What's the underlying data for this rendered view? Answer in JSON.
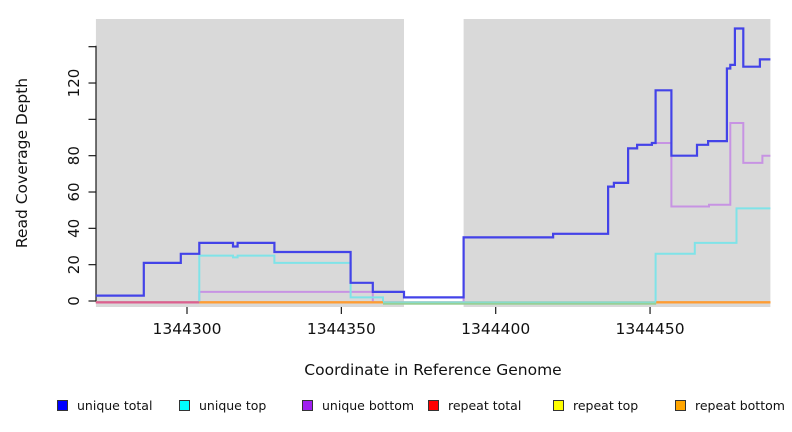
{
  "axes": {
    "xlabel": "Coordinate in Reference Genome",
    "ylabel": "Read Coverage Depth",
    "xticks": [
      {
        "value": 1344300,
        "label": "1344300"
      },
      {
        "value": 1344350,
        "label": "1344350"
      },
      {
        "value": 1344400,
        "label": "1344400"
      },
      {
        "value": 1344450,
        "label": "1344450"
      }
    ],
    "yticks": [
      {
        "value": 0,
        "label": "0"
      },
      {
        "value": 20,
        "label": "20"
      },
      {
        "value": 40,
        "label": "40"
      },
      {
        "value": 60,
        "label": "60"
      },
      {
        "value": 80,
        "label": "80"
      },
      {
        "value": 100,
        "label": ""
      },
      {
        "value": 120,
        "label": "120"
      },
      {
        "value": 140,
        "label": ""
      }
    ]
  },
  "chart_data": {
    "type": "line",
    "subtype": "step",
    "title": "",
    "xlabel": "Coordinate in Reference Genome",
    "ylabel": "Read Coverage Depth",
    "xlim": [
      1344270.5,
      1344489
    ],
    "ylim": [
      0,
      155
    ],
    "grid": false,
    "legend_position": "bottom",
    "panel_color": "#d9d9d9",
    "gap_region": {
      "x0": 1344370.3,
      "x1": 1344389.6,
      "color": "#ffffff"
    },
    "background_regions": [
      {
        "x0": 1344270.5,
        "x1": 1344370.3
      },
      {
        "x0": 1344389.6,
        "x1": 1344489
      }
    ],
    "series": [
      {
        "name": "unique total",
        "color": "#0000ff",
        "line_color": "#4343e8",
        "steps": [
          [
            1344270.5,
            3
          ],
          [
            1344286,
            21
          ],
          [
            1344298,
            26
          ],
          [
            1344304,
            32
          ],
          [
            1344314.9,
            30
          ],
          [
            1344316.4,
            32
          ],
          [
            1344328.3,
            27
          ],
          [
            1344353,
            10
          ],
          [
            1344360.2,
            5
          ],
          [
            1344370.3,
            2
          ],
          [
            1344389.6,
            35
          ],
          [
            1344418.6,
            37
          ],
          [
            1344436.4,
            63
          ],
          [
            1344438.3,
            65
          ],
          [
            1344442.9,
            84
          ],
          [
            1344445.8,
            86
          ],
          [
            1344450.6,
            87
          ],
          [
            1344451.8,
            116
          ],
          [
            1344456.9,
            80
          ],
          [
            1344465.2,
            86
          ],
          [
            1344468.8,
            88
          ],
          [
            1344474.9,
            128
          ],
          [
            1344476,
            130
          ],
          [
            1344477.5,
            150
          ],
          [
            1344480.2,
            129
          ],
          [
            1344485.6,
            133
          ]
        ]
      },
      {
        "name": "unique top",
        "color": "#00ffff",
        "line_color": "#7fe3e8",
        "steps": [
          [
            1344270.5,
            0
          ],
          [
            1344304,
            25
          ],
          [
            1344314.9,
            24
          ],
          [
            1344316.4,
            25
          ],
          [
            1344328.3,
            21
          ],
          [
            1344353,
            2
          ],
          [
            1344363.5,
            0
          ],
          [
            1344451.8,
            26
          ],
          [
            1344464.5,
            32
          ],
          [
            1344478,
            51
          ]
        ]
      },
      {
        "name": "unique bottom",
        "color": "#a020f0",
        "line_color": "#c793e3",
        "steps": [
          [
            1344270.5,
            0
          ],
          [
            1344304,
            5
          ],
          [
            1344360.2,
            0
          ],
          [
            1344389.6,
            35
          ],
          [
            1344418.6,
            37
          ],
          [
            1344436.4,
            63
          ],
          [
            1344438.3,
            65
          ],
          [
            1344442.9,
            84
          ],
          [
            1344445.8,
            86
          ],
          [
            1344450.6,
            87
          ],
          [
            1344456.9,
            52
          ],
          [
            1344469.1,
            53
          ],
          [
            1344476,
            98
          ],
          [
            1344480.2,
            76
          ],
          [
            1344486.4,
            80
          ]
        ]
      },
      {
        "name": "repeat total",
        "color": "#ff0000",
        "line_color": "#dd6090",
        "steps": [
          [
            1344270.5,
            0
          ]
        ]
      },
      {
        "name": "repeat top",
        "color": "#ffff00",
        "line_color": "#e8e84a",
        "steps": [
          [
            1344270.5,
            0
          ]
        ]
      },
      {
        "name": "repeat bottom",
        "color": "#ffa500",
        "line_color": "#ff9d33",
        "steps": [
          [
            1344270.5,
            0
          ]
        ]
      }
    ],
    "zero_line_segments": [
      {
        "x0": 1344270.5,
        "x1": 1344304,
        "color": "#dd6090"
      },
      {
        "x0": 1344304,
        "x1": 1344363.5,
        "color": "#ff9d33"
      },
      {
        "x0": 1344363.5,
        "x1": 1344452,
        "color": "#97cf97"
      },
      {
        "x0": 1344452,
        "x1": 1344489,
        "color": "#ff9d33"
      }
    ]
  },
  "legend": {
    "items": [
      {
        "label": "unique total",
        "color": "#0000ff"
      },
      {
        "label": "unique top",
        "color": "#00ffff"
      },
      {
        "label": "unique bottom",
        "color": "#a020f0"
      },
      {
        "label": "repeat total",
        "color": "#ff0000"
      },
      {
        "label": "repeat top",
        "color": "#ffff00"
      },
      {
        "label": "repeat bottom",
        "color": "#ffa500"
      }
    ]
  }
}
